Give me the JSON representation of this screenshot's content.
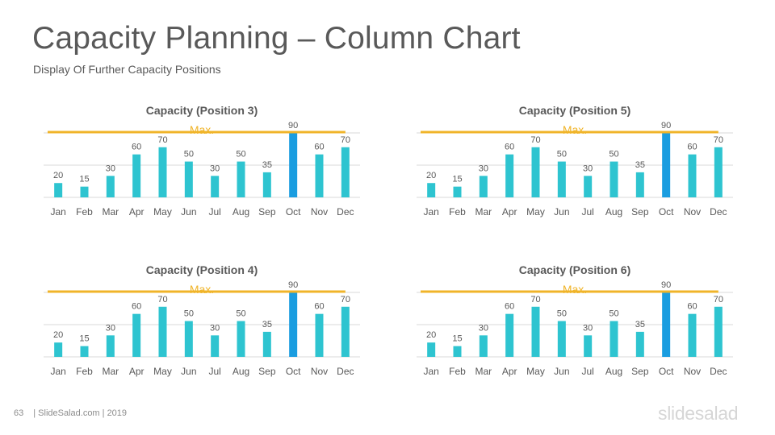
{
  "header": {
    "title": "Capacity Planning – Column Chart",
    "subtitle": "Display Of Further Capacity Positions"
  },
  "footer": {
    "page_number": "63",
    "credit": "| SlideSalad.com | 2019"
  },
  "logo": "slidesalad",
  "colors": {
    "bar": "#2ec4d0",
    "highlight_bar": "#1a9de0",
    "max_line": "#f0b429",
    "text": "#595959"
  },
  "chart_data": [
    {
      "type": "bar",
      "title": "Capacity (Position 3)",
      "categories": [
        "Jan",
        "Feb",
        "Mar",
        "Apr",
        "May",
        "Jun",
        "Jul",
        "Aug",
        "Sep",
        "Oct",
        "Nov",
        "Dec"
      ],
      "values": [
        20,
        15,
        30,
        60,
        70,
        50,
        30,
        50,
        35,
        90,
        60,
        70
      ],
      "highlight_index": 9,
      "max_label": "Max.",
      "max_value": 90,
      "ylim": [
        0,
        90
      ],
      "grid": true
    },
    {
      "type": "bar",
      "title": "Capacity (Position 5)",
      "categories": [
        "Jan",
        "Feb",
        "Mar",
        "Apr",
        "May",
        "Jun",
        "Jul",
        "Aug",
        "Sep",
        "Oct",
        "Nov",
        "Dec"
      ],
      "values": [
        20,
        15,
        30,
        60,
        70,
        50,
        30,
        50,
        35,
        90,
        60,
        70
      ],
      "highlight_index": 9,
      "max_label": "Max.",
      "max_value": 90,
      "ylim": [
        0,
        90
      ],
      "grid": true
    },
    {
      "type": "bar",
      "title": "Capacity (Position 4)",
      "categories": [
        "Jan",
        "Feb",
        "Mar",
        "Apr",
        "May",
        "Jun",
        "Jul",
        "Aug",
        "Sep",
        "Oct",
        "Nov",
        "Dec"
      ],
      "values": [
        20,
        15,
        30,
        60,
        70,
        50,
        30,
        50,
        35,
        90,
        60,
        70
      ],
      "highlight_index": 9,
      "max_label": "Max.",
      "max_value": 90,
      "ylim": [
        0,
        90
      ],
      "grid": true
    },
    {
      "type": "bar",
      "title": "Capacity (Position 6)",
      "categories": [
        "Jan",
        "Feb",
        "Mar",
        "Apr",
        "May",
        "Jun",
        "Jul",
        "Aug",
        "Sep",
        "Oct",
        "Nov",
        "Dec"
      ],
      "values": [
        20,
        15,
        30,
        60,
        70,
        50,
        30,
        50,
        35,
        90,
        60,
        70
      ],
      "highlight_index": 9,
      "max_label": "Max.",
      "max_value": 90,
      "ylim": [
        0,
        90
      ],
      "grid": true
    }
  ]
}
